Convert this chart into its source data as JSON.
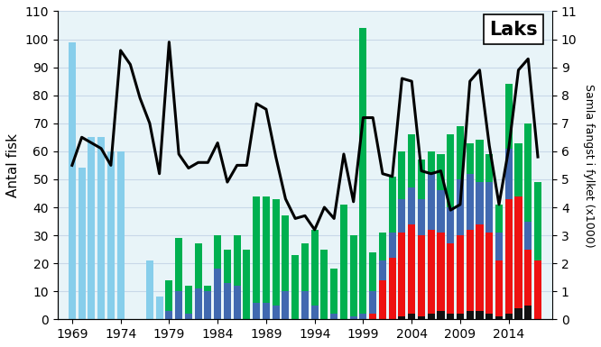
{
  "years": [
    1969,
    1970,
    1971,
    1972,
    1973,
    1974,
    1975,
    1976,
    1977,
    1978,
    1979,
    1980,
    1981,
    1982,
    1983,
    1984,
    1985,
    1986,
    1987,
    1988,
    1989,
    1990,
    1991,
    1992,
    1993,
    1994,
    1995,
    1996,
    1997,
    1998,
    1999,
    2000,
    2001,
    2002,
    2003,
    2004,
    2005,
    2006,
    2007,
    2008,
    2009,
    2010,
    2011,
    2012,
    2013,
    2014,
    2015,
    2016,
    2017
  ],
  "lightblue_bars": [
    99,
    54,
    65,
    65,
    60,
    60,
    0,
    0,
    21,
    8,
    0,
    0,
    0,
    0,
    0,
    0,
    0,
    0,
    0,
    0,
    0,
    0,
    0,
    0,
    0,
    0,
    0,
    0,
    0,
    0,
    0,
    0,
    0,
    0,
    0,
    0,
    0,
    0,
    0,
    0,
    0,
    0,
    0,
    0,
    0,
    0,
    0,
    0,
    0
  ],
  "blue_bars": [
    0,
    0,
    0,
    0,
    0,
    0,
    0,
    0,
    0,
    0,
    3,
    10,
    2,
    11,
    10,
    18,
    13,
    12,
    0,
    6,
    6,
    5,
    10,
    0,
    10,
    5,
    0,
    2,
    0,
    1,
    2,
    8,
    7,
    9,
    12,
    13,
    13,
    20,
    15,
    13,
    20,
    20,
    15,
    18,
    10,
    18,
    0,
    10,
    0
  ],
  "green_bars": [
    0,
    0,
    0,
    0,
    0,
    0,
    0,
    0,
    0,
    0,
    11,
    19,
    10,
    16,
    2,
    12,
    12,
    18,
    25,
    38,
    38,
    38,
    27,
    23,
    17,
    27,
    25,
    16,
    41,
    29,
    102,
    14,
    10,
    20,
    17,
    19,
    14,
    8,
    13,
    26,
    19,
    11,
    15,
    10,
    10,
    23,
    19,
    35,
    28
  ],
  "red_bars": [
    0,
    0,
    0,
    0,
    0,
    0,
    0,
    0,
    0,
    0,
    0,
    0,
    0,
    0,
    0,
    0,
    0,
    0,
    0,
    0,
    0,
    0,
    0,
    0,
    0,
    0,
    0,
    0,
    0,
    0,
    0,
    2,
    14,
    22,
    30,
    32,
    29,
    30,
    28,
    25,
    28,
    29,
    31,
    29,
    20,
    41,
    40,
    20,
    21
  ],
  "black_bars": [
    0,
    0,
    0,
    0,
    0,
    0,
    0,
    0,
    0,
    0,
    0,
    0,
    0,
    0,
    0,
    0,
    0,
    0,
    0,
    0,
    0,
    0,
    0,
    0,
    0,
    0,
    0,
    0,
    0,
    0,
    0,
    0,
    0,
    0,
    1,
    2,
    1,
    2,
    3,
    2,
    2,
    3,
    3,
    2,
    1,
    2,
    4,
    5,
    0
  ],
  "line_values": [
    5.5,
    6.5,
    6.3,
    6.1,
    5.5,
    9.6,
    9.1,
    7.9,
    7.0,
    5.2,
    9.9,
    5.9,
    5.4,
    5.6,
    5.6,
    6.3,
    4.9,
    5.5,
    5.5,
    7.7,
    7.5,
    5.8,
    4.3,
    3.6,
    3.7,
    3.2,
    4.0,
    3.6,
    5.9,
    4.2,
    7.2,
    7.2,
    5.2,
    5.1,
    8.6,
    8.5,
    5.3,
    5.2,
    5.3,
    3.9,
    4.1,
    8.5,
    8.9,
    6.2,
    4.1,
    6.1,
    8.9,
    9.3,
    5.8
  ],
  "title": "Laks",
  "ylabel_left": "Antal fisk",
  "ylabel_right": "Samla fangst i fylket (x1000)",
  "ylim_left": [
    0,
    110
  ],
  "ylim_right": [
    0,
    11
  ],
  "yticks_left": [
    0,
    10,
    20,
    30,
    40,
    50,
    60,
    70,
    80,
    90,
    100,
    110
  ],
  "yticks_right": [
    0,
    1,
    2,
    3,
    4,
    5,
    6,
    7,
    8,
    9,
    10,
    11
  ],
  "xtick_years": [
    1969,
    1974,
    1979,
    1984,
    1989,
    1994,
    1999,
    2004,
    2009,
    2014
  ],
  "color_light_blue": "#87CEEB",
  "color_blue": "#4169B0",
  "color_green": "#00B050",
  "color_red": "#EE1111",
  "color_black": "#111111",
  "color_line": "#000000",
  "bg_color": "#E8F4F8"
}
